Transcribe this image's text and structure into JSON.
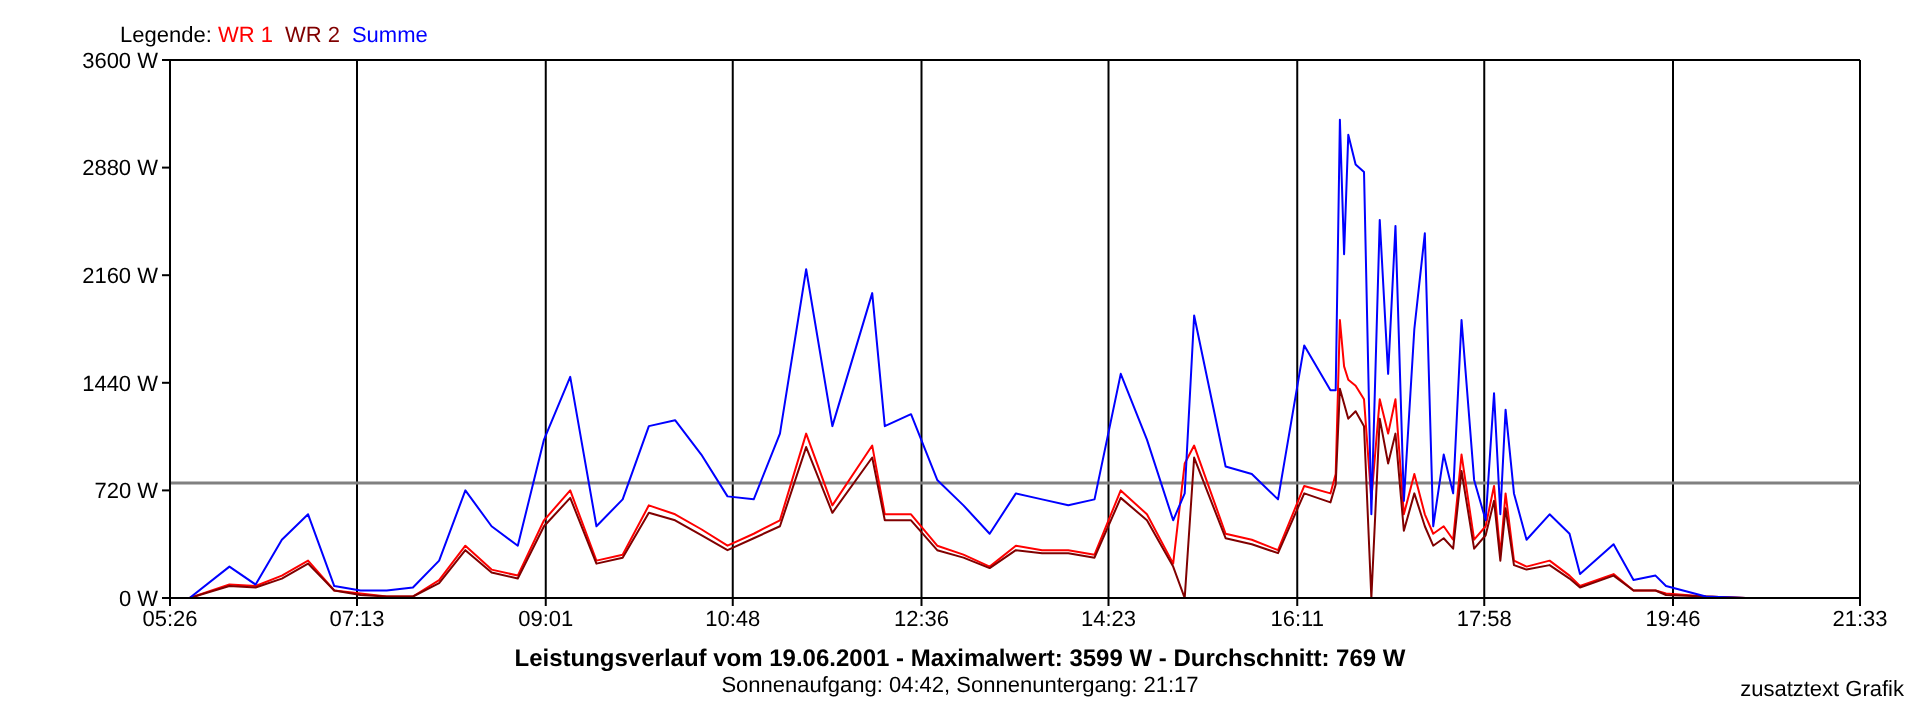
{
  "chart_data": {
    "type": "line",
    "title": "Leistungsverlauf vom 19.06.2001 - Maximalwert: 3599 W - Durchschnitt: 769 W",
    "subtitle": "Sonnenaufgang: 04:42, Sonnenuntergang: 21:17",
    "legend_title": "Legende:",
    "annotations": [
      "zusatztext Grafik"
    ],
    "x": [
      5.62,
      6.0,
      6.25,
      6.5,
      6.75,
      7.0,
      7.25,
      7.5,
      7.75,
      8.0,
      8.25,
      8.5,
      8.75,
      9.0,
      9.25,
      9.5,
      9.75,
      10.0,
      10.25,
      10.5,
      10.75,
      11.0,
      11.25,
      11.5,
      11.75,
      12.13,
      12.25,
      12.5,
      12.75,
      13.0,
      13.25,
      13.5,
      13.75,
      14.0,
      14.25,
      14.5,
      14.75,
      15.0,
      15.11,
      15.2,
      15.5,
      15.75,
      16.0,
      16.25,
      16.5,
      16.55,
      16.59,
      16.63,
      16.67,
      16.74,
      16.82,
      16.89,
      16.97,
      17.05,
      17.12,
      17.2,
      17.3,
      17.4,
      17.48,
      17.58,
      17.67,
      17.75,
      17.87,
      17.98,
      18.06,
      18.12,
      18.17,
      18.25,
      18.37,
      18.59,
      18.78,
      18.88,
      19.2,
      19.39,
      19.6,
      19.7,
      20.08,
      20.46
    ],
    "series": [
      {
        "name": "WR 1",
        "color": "#ff0000",
        "values": [
          0,
          90,
          80,
          150,
          250,
          50,
          30,
          10,
          10,
          120,
          350,
          190,
          150,
          520,
          720,
          250,
          290,
          620,
          560,
          460,
          350,
          430,
          520,
          1100,
          620,
          1020,
          560,
          560,
          350,
          290,
          210,
          350,
          320,
          320,
          290,
          720,
          560,
          230,
          900,
          1020,
          430,
          390,
          320,
          750,
          700,
          830,
          1860,
          1550,
          1460,
          1420,
          1330,
          660,
          1330,
          1100,
          1330,
          560,
          830,
          560,
          430,
          480,
          390,
          960,
          390,
          480,
          750,
          290,
          700,
          250,
          210,
          250,
          150,
          80,
          160,
          50,
          50,
          30,
          10,
          0
        ]
      },
      {
        "name": "WR 2",
        "color": "#800000",
        "values": [
          0,
          80,
          70,
          130,
          230,
          50,
          20,
          10,
          10,
          100,
          320,
          170,
          130,
          480,
          670,
          230,
          270,
          570,
          520,
          420,
          320,
          400,
          480,
          1010,
          570,
          940,
          520,
          520,
          320,
          270,
          200,
          320,
          300,
          300,
          270,
          670,
          520,
          210,
          0,
          940,
          400,
          360,
          300,
          700,
          640,
          760,
          1400,
          1300,
          1200,
          1250,
          1150,
          0,
          1200,
          900,
          1100,
          450,
          700,
          480,
          350,
          400,
          330,
          850,
          330,
          420,
          650,
          250,
          600,
          220,
          190,
          220,
          130,
          70,
          150,
          50,
          50,
          20,
          10,
          0
        ]
      },
      {
        "name": "Summe",
        "color": "#0000ff",
        "values": [
          0,
          210,
          90,
          390,
          560,
          80,
          50,
          50,
          70,
          250,
          720,
          480,
          350,
          1060,
          1480,
          480,
          660,
          1150,
          1190,
          960,
          680,
          660,
          1100,
          2200,
          1150,
          2040,
          1150,
          1230,
          790,
          620,
          430,
          700,
          660,
          620,
          660,
          1500,
          1060,
          520,
          700,
          1890,
          880,
          830,
          660,
          1690,
          1390,
          1390,
          3200,
          2300,
          3100,
          2900,
          2850,
          560,
          2530,
          1500,
          2490,
          650,
          1800,
          2440,
          480,
          960,
          700,
          1860,
          790,
          520,
          1370,
          560,
          1260,
          700,
          390,
          560,
          430,
          160,
          360,
          120,
          150,
          80,
          10,
          0
        ]
      }
    ],
    "xlim": [
      5.4333,
      21.55
    ],
    "xticks": [
      {
        "value": 5.4333,
        "label": "05:26"
      },
      {
        "value": 7.2167,
        "label": "07:13"
      },
      {
        "value": 9.0167,
        "label": "09:01"
      },
      {
        "value": 10.8,
        "label": "10:48"
      },
      {
        "value": 12.6,
        "label": "12:36"
      },
      {
        "value": 14.3833,
        "label": "14:23"
      },
      {
        "value": 16.1833,
        "label": "16:11"
      },
      {
        "value": 17.9667,
        "label": "17:58"
      },
      {
        "value": 19.7667,
        "label": "19:46"
      },
      {
        "value": 21.55,
        "label": "21:33"
      }
    ],
    "ylim": [
      0,
      3600
    ],
    "yticks": [
      {
        "value": 0,
        "label": "0 W"
      },
      {
        "value": 720,
        "label": "720 W"
      },
      {
        "value": 1440,
        "label": "1440 W"
      },
      {
        "value": 2160,
        "label": "2160 W"
      },
      {
        "value": 2880,
        "label": "2880 W"
      },
      {
        "value": 3600,
        "label": "3600 W"
      }
    ],
    "ref_lines": [
      {
        "axis": "y",
        "value": 769,
        "color": "#808080"
      }
    ],
    "grid": true,
    "legend": "top left",
    "marker": "none",
    "line_style": "solid"
  }
}
